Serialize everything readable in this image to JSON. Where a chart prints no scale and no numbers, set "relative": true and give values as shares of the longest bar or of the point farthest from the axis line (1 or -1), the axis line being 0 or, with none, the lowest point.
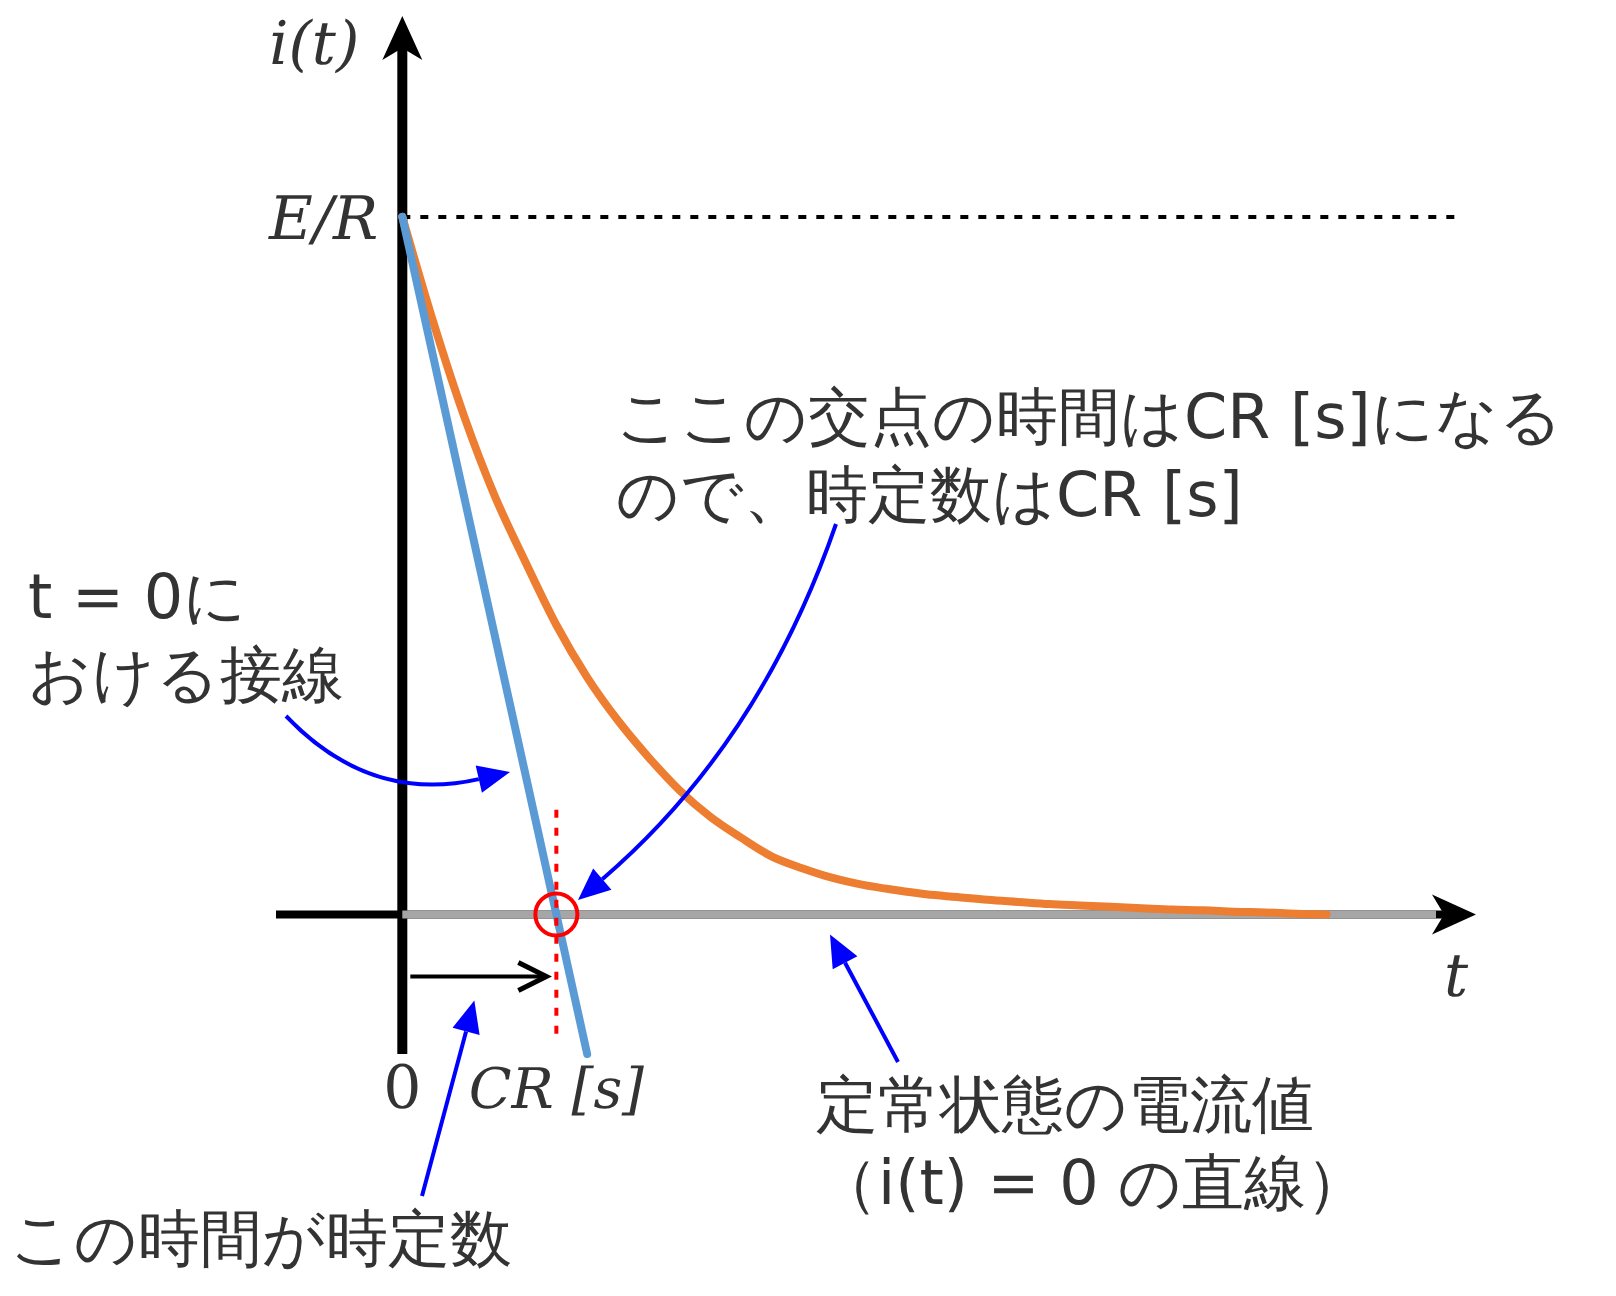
{
  "chart_data": {
    "type": "line",
    "xlabel": "t",
    "ylabel": "i(t)",
    "relative": true,
    "categories": [
      "0",
      null,
      null,
      null,
      null,
      "CR [s]",
      null,
      null,
      null,
      null,
      null,
      null,
      null,
      null,
      null,
      null,
      null,
      null,
      null,
      null,
      null,
      null,
      null,
      null,
      null,
      null,
      null,
      null,
      null,
      null,
      null,
      null,
      null,
      null,
      null
    ],
    "series": [
      {
        "color": "#ed7d31",
        "values": [
          1,
          0.85,
          0.715,
          0.6,
          0.505,
          0.415,
          0.34,
          0.278,
          0.225,
          0.178,
          0.14,
          0.11,
          0.083,
          0.066,
          0.052,
          0.042,
          0.035,
          0.029,
          0.025,
          0.021,
          0.018,
          0.015,
          0.013,
          0.011,
          0.009,
          0.007,
          0.006,
          0.004,
          0.003,
          0.001,
          0,
          null,
          null,
          null,
          null
        ]
      },
      {
        "color": "#5b9bd5",
        "values": [
          1,
          0.8,
          0.6,
          0.4,
          0.2,
          0,
          -0.2,
          null,
          null,
          null,
          null,
          null,
          null,
          null,
          null,
          null,
          null,
          null,
          null,
          null,
          null,
          null,
          null,
          null,
          null,
          null,
          null,
          null,
          null,
          null,
          null,
          null,
          null,
          null,
          null
        ]
      },
      {
        "color": "#ff0000",
        "x": [
          "CR [s]",
          "CR [s]"
        ],
        "values": [
          0.15,
          -0.18
        ],
        "line_style": "dotted"
      },
      {
        "type": "scatter",
        "color": "#ff0000",
        "x": [
          "CR [s]"
        ],
        "values": [
          0
        ],
        "marker": "circle"
      }
    ],
    "ref_lines": [
      {
        "axis": "y",
        "value": 1,
        "label": "E/R",
        "color": "#000000",
        "line_style": "dotted"
      },
      {
        "axis": "y",
        "value": 0,
        "label": "定常状態の電流値（i(t) = 0 の直線）",
        "color": "#a6a6a6",
        "line_style": "solid"
      }
    ],
    "annotations": [
      "ここの交点の時間はCR [s]になるので、時定数はCR [s]",
      "t = 0における接線",
      "この時間が時定数"
    ]
  }
}
